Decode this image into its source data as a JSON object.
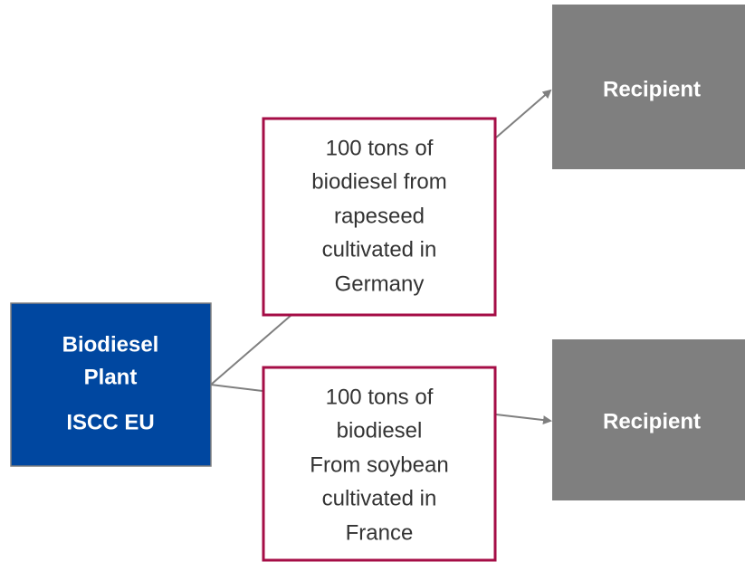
{
  "nodes": [
    {
      "label_lines": [
        "Biodiesel",
        "Plant"
      ],
      "sublabel": "ISCC EU"
    },
    {
      "label_lines": [
        "100 tons of",
        "biodiesel from",
        "rapeseed",
        "cultivated in",
        "Germany"
      ]
    },
    {
      "label_lines": [
        "100 tons of",
        "biodiesel",
        "From soybean",
        "cultivated in",
        "France"
      ]
    },
    {
      "label": "Recipient"
    },
    {
      "label": "Recipient"
    }
  ]
}
